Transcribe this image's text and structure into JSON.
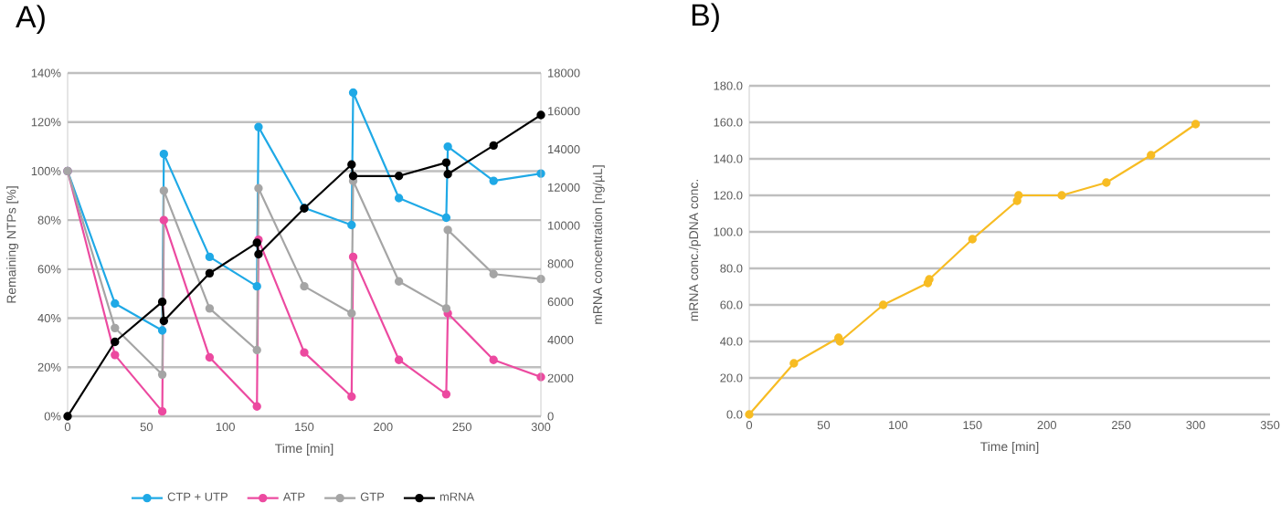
{
  "chart_data": [
    {
      "type": "line",
      "title": "A)",
      "xlabel": "Time [min]",
      "ylabel": "Remaining NTPs [%]",
      "y2label": "mRNA concentration [ng/µL]",
      "xlim": [
        0,
        300
      ],
      "xticks": [
        0,
        50,
        100,
        150,
        200,
        250,
        300
      ],
      "ylim": [
        0,
        140
      ],
      "yticks": [
        {
          "value": 0,
          "label": "0%"
        },
        {
          "value": 20,
          "label": "20%"
        },
        {
          "value": 40,
          "label": "40%"
        },
        {
          "value": 60,
          "label": "60%"
        },
        {
          "value": 80,
          "label": "80%"
        },
        {
          "value": 100,
          "label": "100%"
        },
        {
          "value": 120,
          "label": "120%"
        },
        {
          "value": 140,
          "label": "140%"
        }
      ],
      "y2lim": [
        0,
        18000
      ],
      "y2ticks": [
        0,
        2000,
        4000,
        6000,
        8000,
        10000,
        12000,
        14000,
        16000,
        18000
      ],
      "grid": "y",
      "legend": "bottom",
      "marker": "circle",
      "series": [
        {
          "name": "CTP + UTP",
          "color": "#1fa9e6",
          "x": [
            0,
            30,
            60,
            61,
            90,
            120,
            121,
            150,
            180,
            181,
            210,
            240,
            241,
            270,
            300
          ],
          "values": [
            100,
            46,
            35,
            107,
            65,
            53,
            118,
            85,
            78,
            132,
            89,
            81,
            110,
            96,
            99
          ]
        },
        {
          "name": "ATP",
          "color": "#ec4aa0",
          "x": [
            0,
            30,
            60,
            61,
            90,
            120,
            121,
            150,
            180,
            181,
            210,
            240,
            241,
            270,
            300
          ],
          "values": [
            100,
            25,
            2,
            80,
            24,
            4,
            72,
            26,
            8,
            65,
            23,
            9,
            42,
            23,
            16
          ]
        },
        {
          "name": "GTP",
          "color": "#a5a5a5",
          "x": [
            0,
            30,
            60,
            61,
            90,
            120,
            121,
            150,
            180,
            181,
            210,
            240,
            241,
            270,
            300
          ],
          "values": [
            100,
            36,
            17,
            92,
            44,
            27,
            93,
            53,
            42,
            96,
            55,
            44,
            76,
            58,
            56
          ]
        },
        {
          "name": "mRNA",
          "color": "#000000",
          "axis": "y2",
          "x": [
            0,
            30,
            60,
            61,
            90,
            120,
            121,
            150,
            180,
            181,
            210,
            240,
            241,
            270,
            300
          ],
          "values": [
            0,
            3900,
            6000,
            5000,
            7500,
            9100,
            8500,
            10900,
            13200,
            12600,
            12600,
            13300,
            12700,
            14200,
            15800
          ]
        }
      ]
    },
    {
      "type": "line",
      "title": "B)",
      "xlabel": "Time [min]",
      "ylabel": "mRNA conc./pDNA conc.",
      "xlim": [
        0,
        350
      ],
      "xticks": [
        0,
        50,
        100,
        150,
        200,
        250,
        300,
        350
      ],
      "ylim": [
        0,
        180
      ],
      "yticks": [
        {
          "value": 0,
          "label": "0.0"
        },
        {
          "value": 20,
          "label": "20.0"
        },
        {
          "value": 40,
          "label": "40.0"
        },
        {
          "value": 60,
          "label": "60.0"
        },
        {
          "value": 80,
          "label": "80.0"
        },
        {
          "value": 100,
          "label": "100.0"
        },
        {
          "value": 120,
          "label": "120.0"
        },
        {
          "value": 140,
          "label": "140.0"
        },
        {
          "value": 160,
          "label": "160.0"
        },
        {
          "value": 180,
          "label": "180.0"
        }
      ],
      "grid": "y",
      "marker": "circle",
      "series": [
        {
          "color": "#f7bc23",
          "x": [
            0,
            30,
            60,
            61,
            90,
            120,
            121,
            150,
            180,
            181,
            210,
            240,
            270,
            300
          ],
          "values": [
            0,
            28,
            42,
            40,
            60,
            72,
            74,
            96,
            117,
            120,
            120,
            127,
            142,
            159
          ]
        }
      ]
    }
  ]
}
